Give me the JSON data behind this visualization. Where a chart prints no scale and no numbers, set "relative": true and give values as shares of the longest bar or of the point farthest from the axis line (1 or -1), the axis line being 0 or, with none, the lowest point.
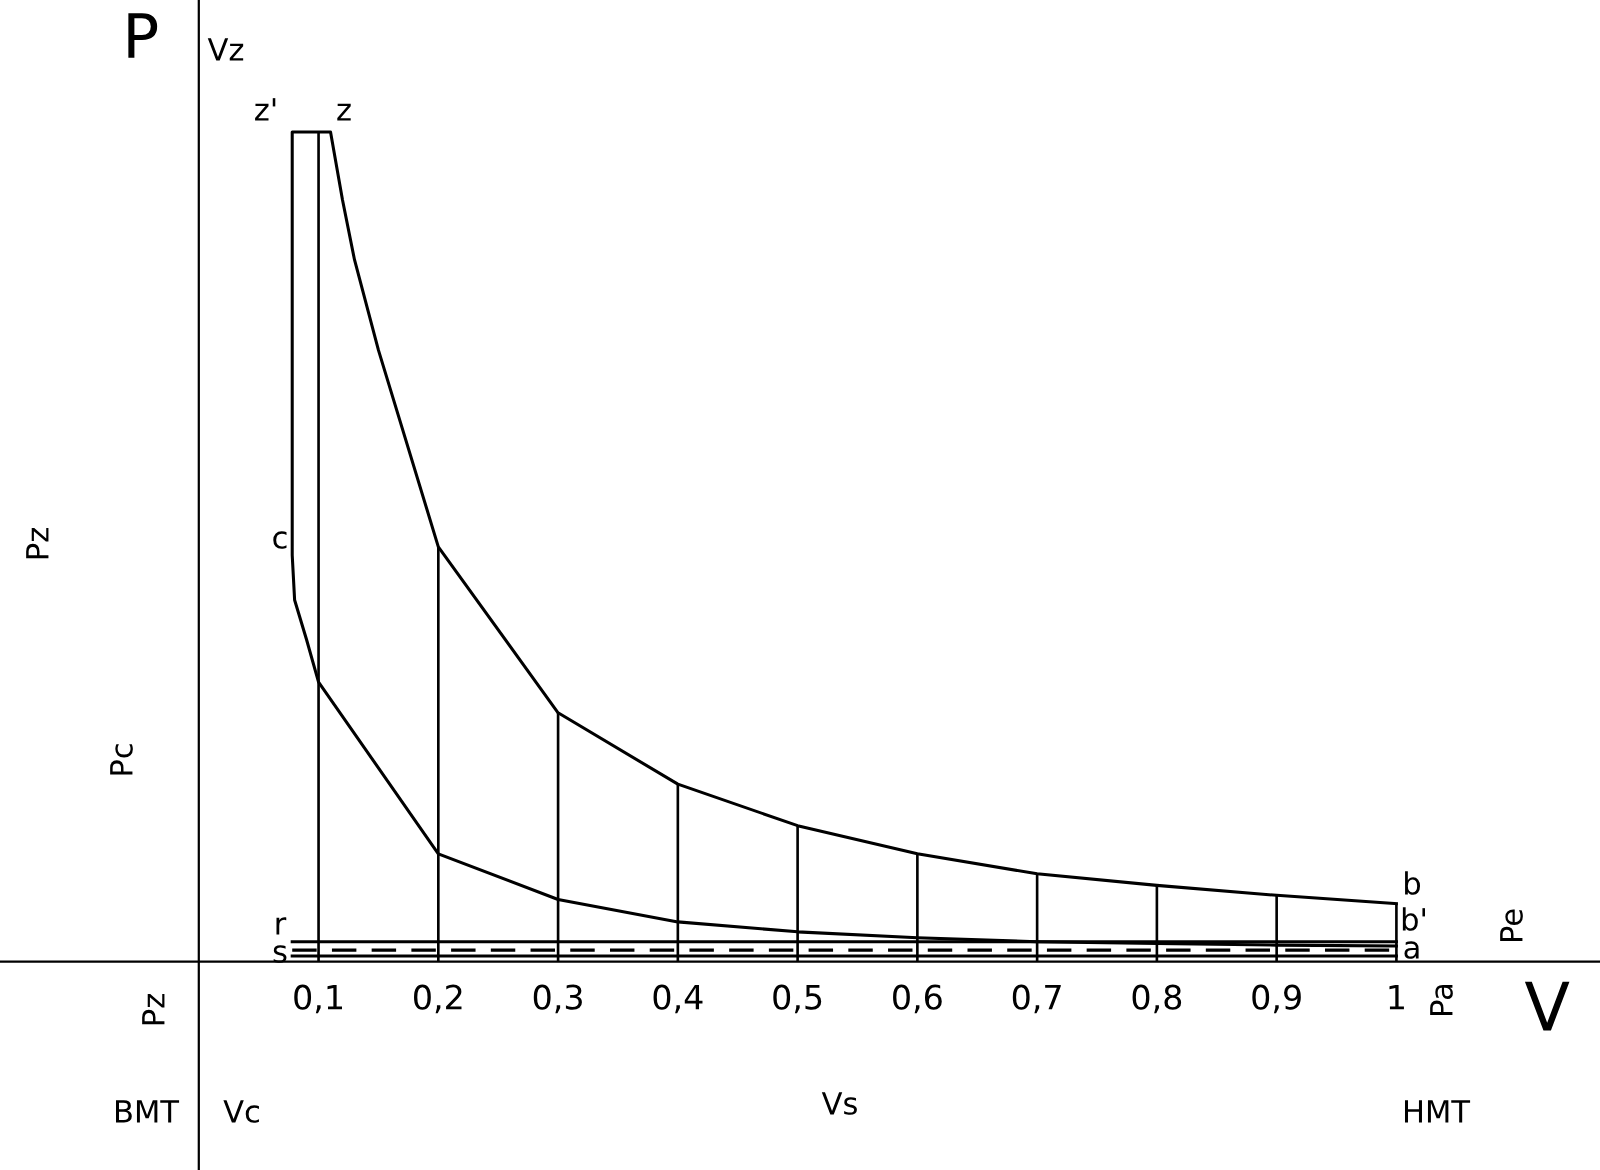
{
  "chart_data": {
    "type": "line",
    "relative": true,
    "xlabel": "V",
    "ylabel": "P",
    "xlim": [
      -0.166,
      1.17
    ],
    "xticks": [
      {
        "value": 0.1,
        "label": "0,1"
      },
      {
        "value": 0.2,
        "label": "0,2"
      },
      {
        "value": 0.3,
        "label": "0,3"
      },
      {
        "value": 0.4,
        "label": "0,4"
      },
      {
        "value": 0.5,
        "label": "0,5"
      },
      {
        "value": 0.6,
        "label": "0,6"
      },
      {
        "value": 0.7,
        "label": "0,7"
      },
      {
        "value": 0.8,
        "label": "0,8"
      },
      {
        "value": 0.9,
        "label": "0,9"
      },
      1
    ],
    "grid": false,
    "series": [
      {
        "color": "#000000",
        "line_style": "solid",
        "x": [
          1.0,
          0.9,
          0.8,
          0.7,
          0.6,
          0.5,
          0.4,
          0.3,
          0.2,
          0.1,
          0.09,
          0.08,
          0.078,
          0.078,
          0.11,
          0.12,
          0.13,
          0.15,
          0.2,
          0.3,
          0.4,
          0.5,
          0.6,
          0.7,
          0.8,
          0.9,
          1.0
        ],
        "values": [
          0.019,
          0.02,
          0.022,
          0.024,
          0.029,
          0.036,
          0.048,
          0.075,
          0.13,
          0.337,
          0.388,
          0.436,
          0.49,
          1,
          1,
          0.918,
          0.846,
          0.737,
          0.5,
          0.3,
          0.214,
          0.164,
          0.13,
          0.106,
          0.092,
          0.08,
          0.07
        ]
      },
      {
        "type": "bar",
        "color": "#000000",
        "x": [
          0.1,
          0.2,
          0.3,
          0.4,
          0.5,
          0.6,
          0.7,
          0.8,
          0.9,
          1.0
        ],
        "values": [
          1,
          0.5,
          0.3,
          0.214,
          0.164,
          0.13,
          0.106,
          0.092,
          0.08,
          0.07
        ]
      },
      {
        "color": "#000000",
        "line_style": "solid",
        "x": [
          0.078,
          1.0
        ],
        "values": [
          0.024,
          0.024
        ]
      },
      {
        "color": "#000000",
        "line_style": "dashed",
        "x": [
          0.078,
          1.0
        ],
        "values": [
          0.014,
          0.014
        ]
      },
      {
        "color": "#000000",
        "line_style": "solid",
        "x": [
          0.078,
          1.0
        ],
        "values": [
          0.007,
          0.007
        ]
      }
    ],
    "annotations": [
      "z'",
      "z",
      "c",
      "r",
      "s",
      "b",
      "b'",
      "a",
      "Vz",
      "Pz",
      "Pc",
      "Pz",
      "Pe",
      "Pa",
      "Vc",
      "Vs",
      "BMT",
      "HMT"
    ]
  }
}
